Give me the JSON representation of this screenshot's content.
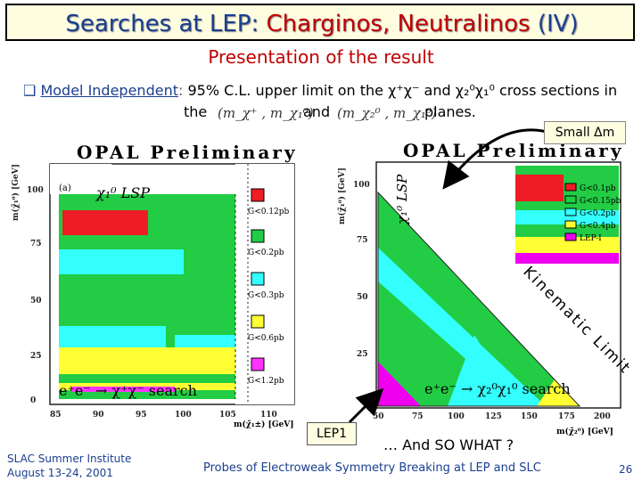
{
  "title": {
    "prefix": "Searches at LEP:",
    "highlight": "Charginos, Neutralinos",
    "suffix": "(IV)"
  },
  "subtitle": "Presentation of the result",
  "bullet": {
    "marker": "q",
    "label": "Model Independent",
    "colon": ":",
    "text": "95% C.L. upper limit on the χ⁺χ⁻ and χ₂⁰χ₁⁰ cross sections in",
    "line2_the": "the",
    "line2_and": "and",
    "line2_planes": "planes.",
    "math1": "(m_χ⁺ , m_χ₁⁰)",
    "math2": "(m_χ₂⁰ , m_χ₁⁰)"
  },
  "callout_small_dm": "Small Δm",
  "callout_lep1": "LEP1",
  "so_what": "… And SO WHAT ?",
  "footer": {
    "institute": "SLAC Summer Institute",
    "dates": "August 13-24, 2001",
    "center": "Probes of Electroweak Symmetry Breaking at LEP and SLC",
    "page": "26"
  },
  "plot_left": {
    "header": "OPAL Preliminary",
    "panel": "(a)",
    "lsp": "χ₁⁰ LSP",
    "ylabel": "m(χ̃₁⁰) [GeV]",
    "xlabel": "m(χ̃₁±) [GeV]",
    "xticks": [
      "85",
      "90",
      "95",
      "100",
      "105",
      "110"
    ],
    "yticks": [
      "0",
      "25",
      "50",
      "75",
      "100"
    ],
    "legend": [
      "G<0.12pb",
      "G<0.2pb",
      "G<0.3pb",
      "G<0.6pb",
      "G<1.2pb"
    ],
    "colors": {
      "red": "#ee1c24",
      "green": "#22cc44",
      "cyan": "#33ffff",
      "yellow": "#ffff33",
      "magenta": "#ff33ff"
    },
    "process": "e⁺e⁻ → χ⁺χ⁻ search"
  },
  "plot_right": {
    "header": "OPAL Preliminary",
    "lsp": "χ₁⁰ LSP",
    "ylabel": "m(χ̃₁⁰) [GeV]",
    "xlabel": "m(χ̃₂⁰) [GeV]",
    "xticks": [
      "50",
      "75",
      "100",
      "125",
      "150",
      "175",
      "200"
    ],
    "yticks": [
      "25",
      "50",
      "75",
      "100"
    ],
    "legend": [
      "G<0.1pb",
      "G<0.15pb",
      "G<0.2pb",
      "G<0.4pb",
      "LEP-I"
    ],
    "colors": {
      "red": "#ee1c24",
      "green": "#22cc44",
      "cyan": "#33ffff",
      "yellow": "#ffff33",
      "magenta": "#ee00ee"
    },
    "kinematic_limit": "Kinematic Limit",
    "process": "e⁺e⁻ → χ₂⁰χ₁⁰ search"
  }
}
